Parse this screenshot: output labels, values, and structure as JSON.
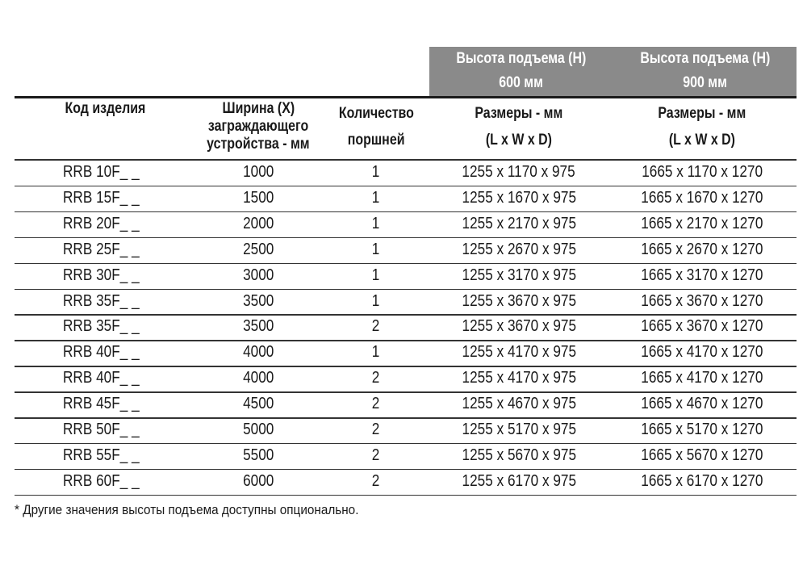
{
  "group_headers": [
    {
      "line1": "Высота подъема (H)",
      "line2": "600 мм"
    },
    {
      "line1": "Высота подъема (H)",
      "line2": "900 мм"
    }
  ],
  "columns": [
    {
      "lines": [
        "Код изделия"
      ]
    },
    {
      "lines": [
        "Ширина (X)",
        "заграждающего",
        "устройства - мм"
      ]
    },
    {
      "lines": [
        "Количество",
        "поршней"
      ]
    },
    {
      "lines": [
        "Размеры - мм",
        "(L x W x D)"
      ]
    },
    {
      "lines": [
        "Размеры - мм",
        "(L x W x D)"
      ]
    }
  ],
  "rows": [
    [
      "RRB 10F_ _",
      "1000",
      "1",
      "1255 x 1170 x 975",
      "1665 x 1170 x 1270"
    ],
    [
      "RRB 15F_ _",
      "1500",
      "1",
      "1255 x 1670 x 975",
      "1665 x 1670 x 1270"
    ],
    [
      "RRB 20F_ _",
      "2000",
      "1",
      "1255 x 2170 x 975",
      "1665 x 2170 x 1270"
    ],
    [
      "RRB 25F_ _",
      "2500",
      "1",
      "1255 x 2670 x 975",
      "1665 x 2670 x 1270"
    ],
    [
      "RRB 30F_ _",
      "3000",
      "1",
      "1255 x 3170 x 975",
      "1665 x 3170 x 1270"
    ],
    [
      "RRB 35F_ _",
      "3500",
      "1",
      "1255 x 3670 x 975",
      "1665 x 3670 x 1270"
    ],
    [
      "RRB 35F_ _",
      "3500",
      "2",
      "1255 x 3670 x 975",
      "1665 x 3670 x 1270"
    ],
    [
      "RRB 40F_ _",
      "4000",
      "1",
      "1255 x 4170 x 975",
      "1665 x 4170 x 1270"
    ],
    [
      "RRB 40F_ _",
      "4000",
      "2",
      "1255 x 4170 x 975",
      "1665 x 4170 x 1270"
    ],
    [
      "RRB 45F_ _",
      "4500",
      "2",
      "1255 x 4670 x 975",
      "1665 x 4670 x 1270"
    ],
    [
      "RRB 50F_ _",
      "5000",
      "2",
      "1255 x 5170 x 975",
      "1665 x 5170 x 1270"
    ],
    [
      "RRB 55F_ _",
      "5500",
      "2",
      "1255 x 5670 x 975",
      "1665 x 5670 x 1270"
    ],
    [
      "RRB 60F_ _",
      "6000",
      "2",
      "1255 x 6170 x 975",
      "1665 x 6170 x 1270"
    ]
  ],
  "footnote": "* Другие значения высоты подъема доступны опционально.",
  "colors": {
    "group_header_bg": "#8a8a8a",
    "group_header_text": "#ffffff",
    "rule": "#1a1a1a"
  }
}
